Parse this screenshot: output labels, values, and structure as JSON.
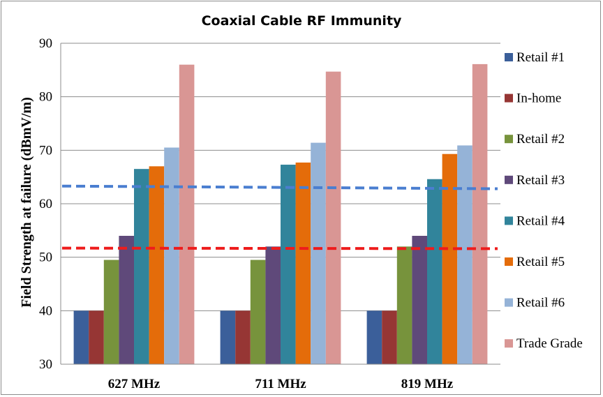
{
  "chart_data": {
    "type": "bar",
    "title": "Coaxial Cable RF Immunity",
    "xlabel": "",
    "ylabel": "Field Strength at failure (dBmV/m)",
    "ylim": [
      30,
      90
    ],
    "yticks": [
      30,
      40,
      50,
      60,
      70,
      80,
      90
    ],
    "grid": true,
    "legend_position": "right",
    "categories": [
      "627 MHz",
      "711 MHz",
      "819 MHz"
    ],
    "series": [
      {
        "name": "Retail #1",
        "color": "#3b5f9a",
        "values": [
          40,
          40,
          40
        ]
      },
      {
        "name": "In-home",
        "color": "#963634",
        "values": [
          40,
          40,
          40
        ]
      },
      {
        "name": "Retail #2",
        "color": "#77933c",
        "values": [
          49.5,
          49.5,
          52
        ]
      },
      {
        "name": "Retail #3",
        "color": "#5f497a",
        "values": [
          54,
          52,
          54
        ]
      },
      {
        "name": "Retail #4",
        "color": "#31849b",
        "values": [
          66.5,
          67.3,
          64.6
        ]
      },
      {
        "name": "Retail #5",
        "color": "#e46c0a",
        "values": [
          67,
          67.7,
          69.3
        ]
      },
      {
        "name": "Retail #6",
        "color": "#95b3d7",
        "values": [
          70.5,
          71.4,
          70.9
        ]
      },
      {
        "name": "Trade Grade",
        "color": "#d99694",
        "values": [
          86,
          84.7,
          86.1
        ]
      }
    ],
    "reference_lines": [
      {
        "color": "#4a7ed0",
        "values": [
          63.3,
          62.8
        ]
      },
      {
        "color": "#ee1c1c",
        "values": [
          51.7,
          51.6
        ]
      }
    ]
  }
}
